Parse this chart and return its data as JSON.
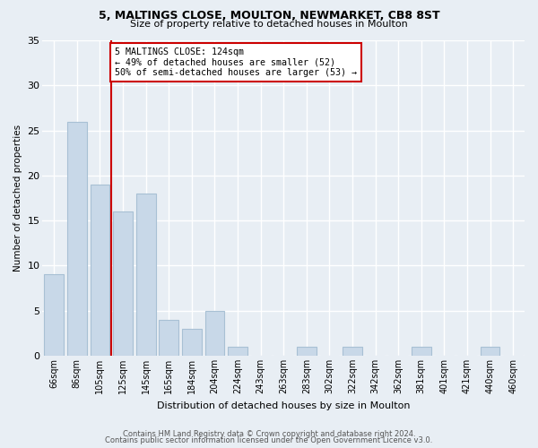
{
  "title1": "5, MALTINGS CLOSE, MOULTON, NEWMARKET, CB8 8ST",
  "title2": "Size of property relative to detached houses in Moulton",
  "xlabel": "Distribution of detached houses by size in Moulton",
  "ylabel": "Number of detached properties",
  "bar_labels": [
    "66sqm",
    "86sqm",
    "105sqm",
    "125sqm",
    "145sqm",
    "165sqm",
    "184sqm",
    "204sqm",
    "224sqm",
    "243sqm",
    "263sqm",
    "283sqm",
    "302sqm",
    "322sqm",
    "342sqm",
    "362sqm",
    "381sqm",
    "401sqm",
    "421sqm",
    "440sqm",
    "460sqm"
  ],
  "bar_values": [
    9,
    26,
    19,
    16,
    18,
    4,
    3,
    5,
    1,
    0,
    0,
    1,
    0,
    1,
    0,
    0,
    1,
    0,
    0,
    1,
    0
  ],
  "bar_color": "#c8d8e8",
  "bar_edge_color": "#a8c0d4",
  "annotation_title": "5 MALTINGS CLOSE: 124sqm",
  "annotation_line1": "← 49% of detached houses are smaller (52)",
  "annotation_line2": "50% of semi-detached houses are larger (53) →",
  "annotation_box_color": "#cc0000",
  "ylim": [
    0,
    35
  ],
  "yticks": [
    0,
    5,
    10,
    15,
    20,
    25,
    30,
    35
  ],
  "footer1": "Contains HM Land Registry data © Crown copyright and database right 2024.",
  "footer2": "Contains public sector information licensed under the Open Government Licence v3.0.",
  "bg_color": "#e8eef4",
  "plot_bg_color": "#e8eef4",
  "grid_color": "#ffffff"
}
